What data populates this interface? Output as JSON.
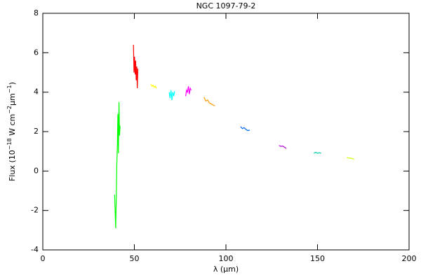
{
  "chart_data": {
    "type": "line",
    "title": "NGC 1097-79-2",
    "xlabel": "λ (μm)",
    "ylabel": [
      "Flux (10",
      "−18",
      " W cm",
      "−2",
      "μm",
      "−1",
      ")"
    ],
    "xlim": [
      0,
      200
    ],
    "xticks": [
      0,
      50,
      100,
      150,
      200
    ],
    "ylim": [
      -4,
      8
    ],
    "yticks": [
      -4,
      -2,
      0,
      2,
      4,
      6,
      8
    ],
    "grid": false,
    "series": [
      {
        "color": "#00ff00",
        "x": [
          39.2,
          39.5,
          39.8,
          40.1,
          40.4,
          40.7,
          41.0,
          41.3,
          41.6,
          41.9,
          42.2
        ],
        "values": [
          -1.2,
          -2.0,
          -2.9,
          -1.5,
          0.3,
          1.2,
          2.9,
          0.9,
          3.5,
          1.8,
          2.3
        ]
      },
      {
        "color": "#ff0000",
        "x": [
          49.5,
          49.8,
          50.1,
          50.4,
          50.7,
          51.0,
          51.3,
          51.6,
          51.9
        ],
        "values": [
          6.4,
          5.0,
          5.8,
          4.9,
          5.6,
          4.6,
          5.3,
          4.2,
          5.2
        ]
      },
      {
        "color": "#ffff00",
        "x": [
          59.0,
          59.6,
          60.2,
          60.8,
          61.4,
          62.0
        ],
        "values": [
          4.4,
          4.3,
          4.35,
          4.25,
          4.3,
          4.2
        ]
      },
      {
        "color": "#00ffff",
        "x": [
          69.0,
          69.5,
          70.0,
          70.5,
          71.0,
          71.5,
          72.0
        ],
        "values": [
          4.0,
          3.7,
          4.1,
          3.6,
          4.0,
          3.8,
          4.05
        ]
      },
      {
        "color": "#ff00ff",
        "x": [
          78.0,
          78.5,
          79.0,
          79.5,
          80.0,
          80.5,
          81.0
        ],
        "values": [
          3.8,
          4.1,
          4.0,
          4.3,
          3.9,
          4.2,
          4.1
        ]
      },
      {
        "color": "#ff9900",
        "x": [
          88.0,
          89.0,
          90.0,
          91.0,
          92.0,
          93.0,
          94.0
        ],
        "values": [
          3.75,
          3.55,
          3.6,
          3.45,
          3.4,
          3.35,
          3.3
        ]
      },
      {
        "color": "#0066ff",
        "x": [
          108.0,
          109.0,
          110.0,
          111.0,
          112.0,
          113.0
        ],
        "values": [
          2.25,
          2.15,
          2.2,
          2.1,
          2.05,
          2.08
        ]
      },
      {
        "color": "#aa00cc",
        "x": [
          129.0,
          130.0,
          131.0,
          132.0,
          133.0
        ],
        "values": [
          1.3,
          1.25,
          1.27,
          1.2,
          1.15
        ]
      },
      {
        "color": "#00ccaa",
        "x": [
          148.0,
          149.0,
          150.0,
          151.0,
          152.0
        ],
        "values": [
          0.9,
          0.95,
          0.9,
          0.93,
          0.9
        ]
      },
      {
        "color": "#ccff00",
        "x": [
          166.0,
          167.0,
          168.0,
          169.0,
          170.0
        ],
        "values": [
          0.68,
          0.66,
          0.65,
          0.63,
          0.6
        ]
      }
    ]
  }
}
